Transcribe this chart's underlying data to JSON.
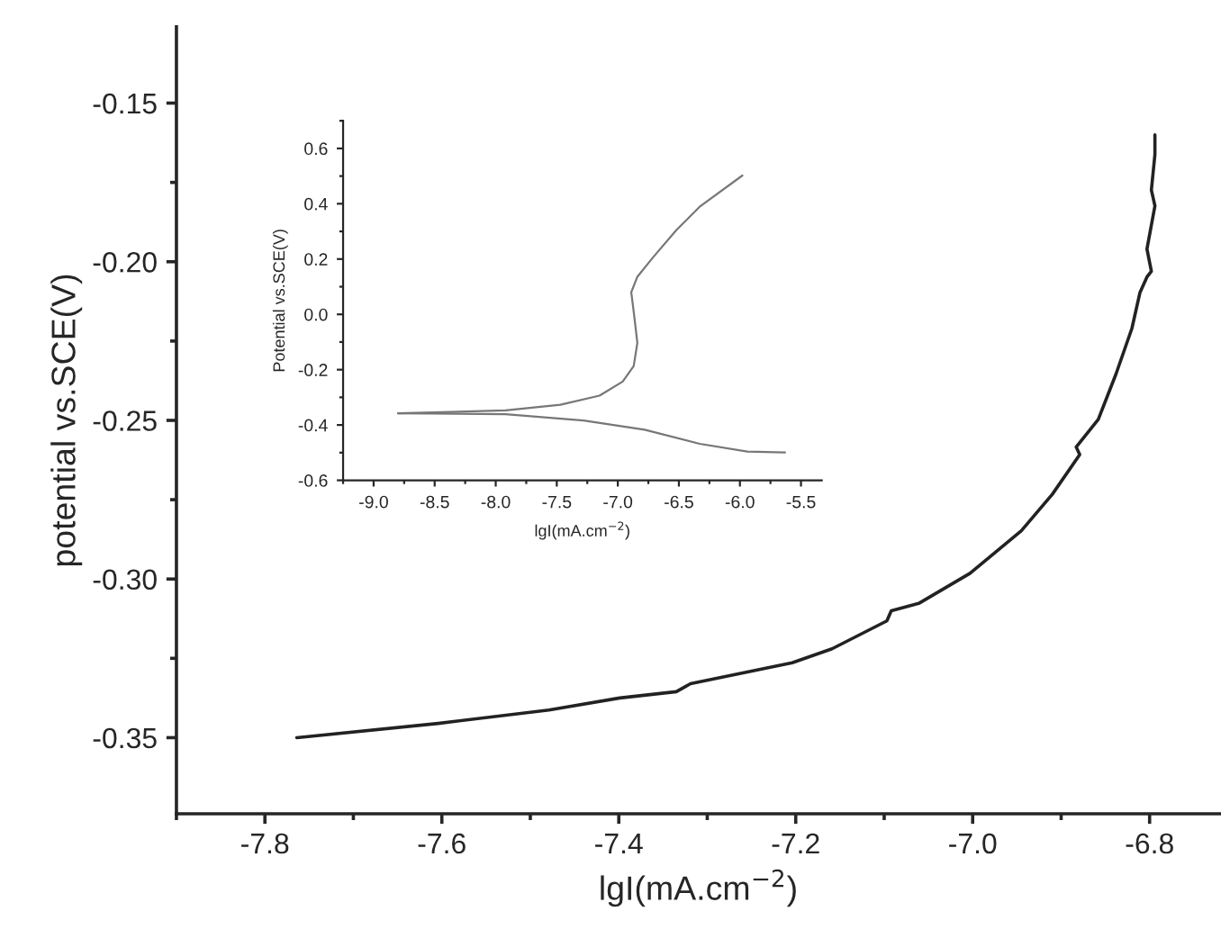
{
  "chart_data": [
    {
      "type": "line",
      "xlabel": "lgI(mA.cm$^{−2}$)",
      "ylabel": "potential vs.SCE(V)",
      "xlim": [
        -7.9,
        -6.72
      ],
      "ylim": [
        -0.374,
        -0.126
      ],
      "xticks": [
        -7.8,
        -7.6,
        -7.4,
        -7.2,
        {
          "value": -7,
          "label": "-7.0"
        },
        -6.8
      ],
      "yticks": [
        -0.35,
        {
          "value": -0.3,
          "label": "-0.30"
        },
        -0.25,
        {
          "value": -0.2,
          "label": "-0.20"
        },
        -0.15
      ],
      "grid": false,
      "legend": false,
      "marker": "none",
      "line_style": "solid",
      "series": [
        {
          "color": "#222222",
          "x": [
            -7.764,
            -7.604,
            -7.479,
            -7.399,
            -7.335,
            -7.319,
            -7.204,
            -7.159,
            -7.097,
            -7.092,
            -7.061,
            -7.003,
            -6.945,
            -6.91,
            -6.879,
            -6.883,
            -6.858,
            -6.838,
            -6.82,
            -6.811,
            -6.803,
            -6.798,
            -6.803,
            -6.794,
            -6.798,
            -6.794,
            -6.794
          ],
          "values": [
            -0.35,
            -0.3455,
            -0.3413,
            -0.3375,
            -0.3355,
            -0.333,
            -0.3264,
            -0.322,
            -0.3132,
            -0.31,
            -0.3077,
            -0.2982,
            -0.2848,
            -0.2733,
            -0.2608,
            -0.2584,
            -0.2497,
            -0.2354,
            -0.221,
            -0.2098,
            -0.2048,
            -0.203,
            -0.196,
            -0.1824,
            -0.1774,
            -0.1662,
            -0.16
          ]
        }
      ]
    },
    {
      "type": "line",
      "xlabel": "lgI(mA.cm$^{−2}$)",
      "ylabel": "Potential vs.SCE(V)",
      "xlim": [
        -9.25,
        -5.33
      ],
      "ylim": [
        -0.6,
        0.7
      ],
      "xticks": [
        {
          "value": -9,
          "label": "-9.0"
        },
        -8.5,
        {
          "value": -8,
          "label": "-8.0"
        },
        -7.5,
        {
          "value": -7,
          "label": "-7.0"
        },
        -6.5,
        {
          "value": -6,
          "label": "-6.0"
        },
        -5.5
      ],
      "yticks": [
        -0.6,
        -0.4,
        -0.2,
        {
          "value": 0,
          "label": "0.0"
        },
        0.2,
        0.4,
        0.6
      ],
      "grid": false,
      "legend": false,
      "marker": "none",
      "line_style": "solid",
      "series": [
        {
          "color": "#777777",
          "x": [
            -8.8,
            -7.92,
            -7.47,
            -7.15,
            -6.96,
            -6.87,
            -6.84,
            -6.87,
            -6.89,
            -6.84,
            -6.71,
            -6.52,
            -6.33,
            -5.98
          ],
          "values": [
            -0.358,
            -0.347,
            -0.327,
            -0.294,
            -0.243,
            -0.187,
            -0.103,
            0.01,
            0.08,
            0.136,
            0.207,
            0.305,
            0.389,
            0.502
          ]
        },
        {
          "color": "#777777",
          "x": [
            -8.8,
            -7.92,
            -7.28,
            -6.78,
            -6.33,
            -5.94,
            -5.63
          ],
          "values": [
            -0.358,
            -0.361,
            -0.384,
            -0.417,
            -0.468,
            -0.496,
            -0.499
          ]
        }
      ]
    }
  ]
}
